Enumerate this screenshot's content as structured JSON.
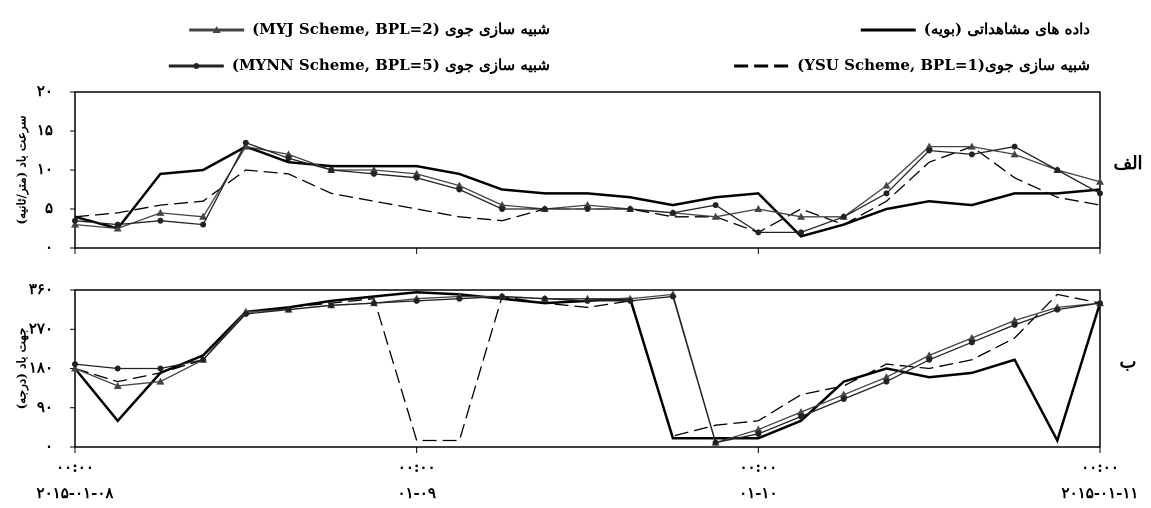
{
  "chart_data": {
    "type": "line",
    "x": [
      0,
      3,
      6,
      9,
      12,
      15,
      18,
      21,
      24,
      27,
      30,
      33,
      36,
      39,
      42,
      45,
      48,
      51,
      54,
      57,
      60,
      63,
      66,
      69,
      72
    ],
    "xlim": [
      0,
      72
    ],
    "xticks": [
      {
        "value": 0,
        "label": "۲۰۱۵-۰۱-۰۸"
      },
      {
        "value": 24,
        "label": "۰۱-۰۹"
      },
      {
        "value": 48,
        "label": "۰۱-۱۰"
      },
      {
        "value": 72,
        "label": "۲۰۱۵-۰۱-۱۱"
      }
    ],
    "xtick_time_labels": [
      "۰۰:۰۰",
      "۰۰:۰۰",
      "۰۰:۰۰",
      "۰۰:۰۰"
    ],
    "series": [
      {
        "name": "داده های مشاهداتی (بویه)",
        "color": "#000000",
        "dash": "none",
        "marker": "none"
      },
      {
        "name": "شبیه سازی جوی(YSU Scheme, BPL=1)",
        "color": "#000000",
        "dash": "dashed",
        "marker": "none"
      },
      {
        "name": "شبیه سازی جوی (MYJ Scheme, BPL=2)",
        "color": "#444444",
        "dash": "none",
        "marker": "triangle"
      },
      {
        "name": "شبیه سازی جوی (MYNN Scheme, BPL=5)",
        "color": "#222222",
        "dash": "none",
        "marker": "circle"
      }
    ],
    "panels": [
      {
        "panel_label": "الف",
        "ylabel": "سرعت باد (متر/ثانیه)",
        "ylim": [
          0,
          20
        ],
        "yticks": [
          {
            "value": 0,
            "label": "۰"
          },
          {
            "value": 5,
            "label": "۵"
          },
          {
            "value": 10,
            "label": "۱۰"
          },
          {
            "value": 15,
            "label": "۱۵"
          },
          {
            "value": 20,
            "label": "۲۰"
          }
        ],
        "series": [
          {
            "values": [
              4,
              2.5,
              9.5,
              10,
              13,
              11,
              10.5,
              10.5,
              10.5,
              9.5,
              7.5,
              7,
              7,
              6.5,
              5.5,
              6.5,
              7,
              1.5,
              3,
              5,
              6,
              5.5,
              7,
              7,
              7.5
            ]
          },
          {
            "values": [
              4,
              4.5,
              5.5,
              6,
              10,
              9.5,
              7,
              6,
              5,
              4,
              3.5,
              5,
              5,
              5,
              4,
              4,
              2,
              5,
              3,
              6,
              11,
              13,
              9,
              6.5,
              5.5
            ]
          },
          {
            "values": [
              3,
              2.5,
              4.5,
              4,
              13,
              12,
              10,
              10,
              9.5,
              8,
              5.5,
              5,
              5.5,
              5,
              4.5,
              4,
              5,
              4,
              4,
              8,
              13,
              13,
              12,
              10,
              8.5
            ]
          },
          {
            "values": [
              3.5,
              3,
              3.5,
              3,
              13.5,
              11.5,
              10,
              9.5,
              9,
              7.5,
              5,
              5,
              5,
              5,
              4.5,
              5.5,
              2,
              2,
              4,
              7,
              12.5,
              12,
              13,
              10,
              7
            ]
          }
        ]
      },
      {
        "panel_label": "ب",
        "ylabel": "جهت باد (درجه)",
        "ylim": [
          0,
          360
        ],
        "yticks": [
          {
            "value": 0,
            "label": "۰"
          },
          {
            "value": 90,
            "label": "۹۰"
          },
          {
            "value": 180,
            "label": "۱۸۰"
          },
          {
            "value": 270,
            "label": "۲۷۰"
          },
          {
            "value": 360,
            "label": "۳۶۰"
          }
        ],
        "series": [
          {
            "values": [
              180,
              60,
              170,
              210,
              310,
              320,
              335,
              345,
              355,
              350,
              340,
              330,
              335,
              340,
              20,
              20,
              20,
              60,
              150,
              180,
              160,
              170,
              200,
              15,
              330
            ]
          },
          {
            "values": [
              180,
              150,
              170,
              200,
              310,
              320,
              330,
              340,
              15,
              15,
              345,
              330,
              320,
              335,
              25,
              50,
              60,
              120,
              140,
              190,
              180,
              200,
              250,
              350,
              330
            ]
          },
          {
            "values": [
              180,
              140,
              150,
              200,
              310,
              315,
              325,
              330,
              340,
              345,
              345,
              340,
              340,
              340,
              350,
              10,
              40,
              80,
              120,
              160,
              210,
              250,
              290,
              320,
              330
            ]
          },
          {
            "values": [
              190,
              180,
              180,
              200,
              305,
              315,
              325,
              330,
              335,
              340,
              345,
              340,
              335,
              335,
              345,
              10,
              30,
              70,
              110,
              150,
              200,
              240,
              280,
              315,
              330
            ]
          }
        ]
      }
    ]
  }
}
